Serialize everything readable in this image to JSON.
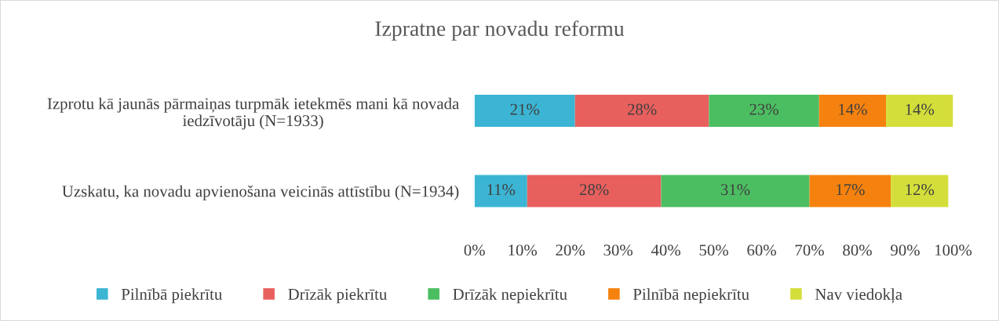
{
  "chart_data": {
    "type": "bar",
    "orientation": "horizontal",
    "stacked": true,
    "title": "Izpratne par novadu reformu",
    "categories": [
      "Izprotu kā jaunās pārmaiņas turpmāk ietekmēs mani kā novada iedzīvotāju (N=1933)",
      "Uzskatu, ka novadu apvienošana veicinās attīstību (N=1934)"
    ],
    "series": [
      {
        "name": "Pilnībā piekrītu",
        "color": "#3bb5d3",
        "values": [
          21,
          11
        ],
        "value_labels": [
          "21%",
          "11%"
        ]
      },
      {
        "name": "Drīzāk piekrītu",
        "color": "#e8605e",
        "values": [
          28,
          28
        ],
        "value_labels": [
          "28%",
          "28%"
        ]
      },
      {
        "name": "Drīzāk nepiekrītu",
        "color": "#4cbe62",
        "values": [
          23,
          31
        ],
        "value_labels": [
          "23%",
          "31%"
        ]
      },
      {
        "name": "Pilnībā nepiekrītu",
        "color": "#f5820f",
        "values": [
          14,
          17
        ],
        "value_labels": [
          "14%",
          "17%"
        ]
      },
      {
        "name": "Nav viedokļa",
        "color": "#d4de3a",
        "values": [
          14,
          12
        ],
        "value_labels": [
          "14%",
          "12%"
        ]
      }
    ],
    "xlim": [
      0,
      100
    ],
    "xticks": [
      {
        "value": 0,
        "label": "0%"
      },
      {
        "value": 10,
        "label": "10%"
      },
      {
        "value": 20,
        "label": "20%"
      },
      {
        "value": 30,
        "label": "30%"
      },
      {
        "value": 40,
        "label": "40%"
      },
      {
        "value": 50,
        "label": "50%"
      },
      {
        "value": 60,
        "label": "60%"
      },
      {
        "value": 70,
        "label": "70%"
      },
      {
        "value": 80,
        "label": "80%"
      },
      {
        "value": 90,
        "label": "90%"
      },
      {
        "value": 100,
        "label": "100%"
      }
    ],
    "grid": false,
    "legend": "bottom"
  }
}
